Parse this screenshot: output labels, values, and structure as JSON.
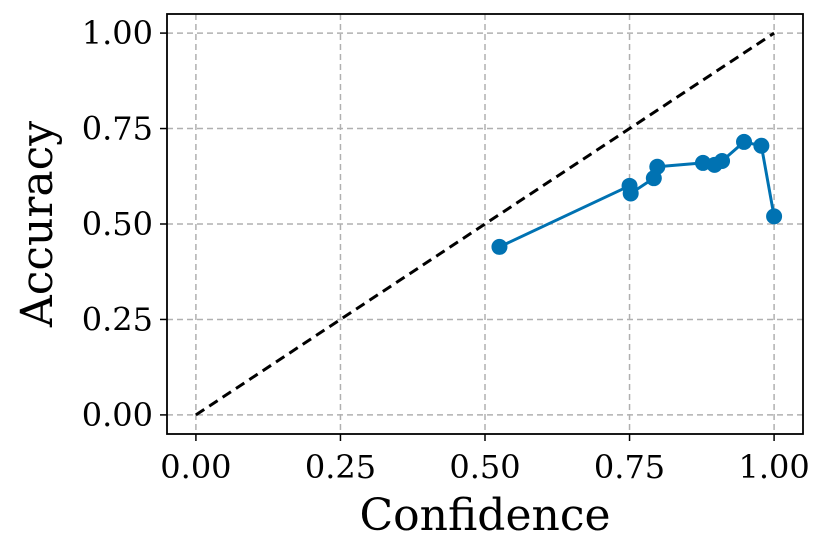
{
  "chart_data": {
    "type": "line",
    "title": "",
    "xlabel": "Confidence",
    "ylabel": "Accuracy",
    "xlim": [
      -0.05,
      1.05
    ],
    "ylim": [
      -0.05,
      1.05
    ],
    "xticks": [
      0.0,
      0.25,
      0.5,
      0.75,
      1.0
    ],
    "yticks": [
      0.0,
      0.25,
      0.5,
      0.75,
      1.0
    ],
    "xtick_labels": [
      "0.00",
      "0.25",
      "0.50",
      "0.75",
      "1.00"
    ],
    "ytick_labels": [
      "0.00",
      "0.25",
      "0.50",
      "0.75",
      "1.00"
    ],
    "grid": true,
    "series": [
      {
        "name": "",
        "style": "solid-with-markers",
        "color": "#0072b2",
        "x": [
          0.525,
          0.75,
          0.752,
          0.792,
          0.798,
          0.877,
          0.897,
          0.91,
          0.948,
          0.978,
          1.0
        ],
        "y": [
          0.44,
          0.6,
          0.58,
          0.62,
          0.65,
          0.66,
          0.655,
          0.665,
          0.715,
          0.705,
          0.52
        ]
      },
      {
        "name": "",
        "style": "dashed",
        "color": "#000000",
        "x": [
          0.0,
          1.0
        ],
        "y": [
          0.0,
          1.0
        ]
      }
    ]
  }
}
